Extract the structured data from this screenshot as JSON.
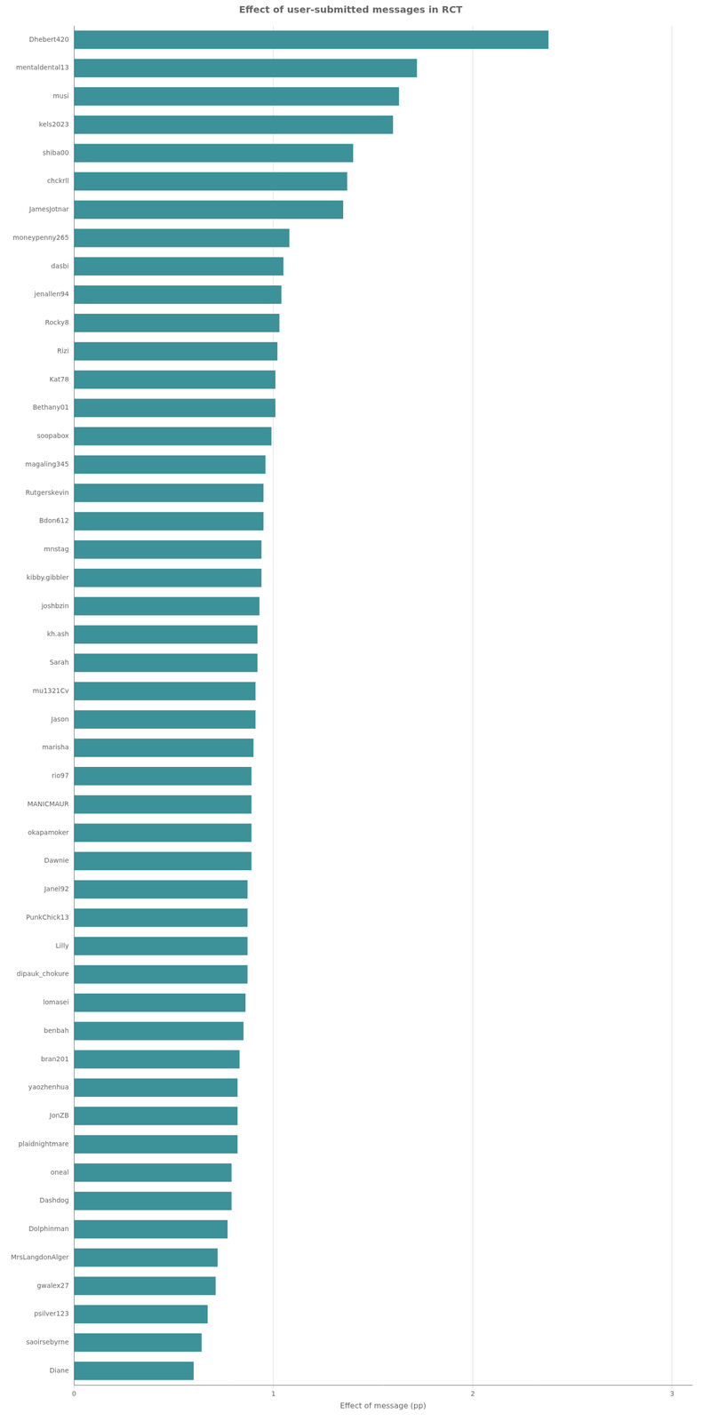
{
  "chart_data": {
    "type": "bar",
    "orientation": "horizontal",
    "title": "Effect of user-submitted messages in RCT",
    "xlabel": "Effect of message (pp)",
    "color": "#3d9199",
    "xlim": [
      0,
      3.1
    ],
    "xticks": [
      0,
      1,
      2,
      3
    ],
    "grid": true,
    "categories": [
      "Dhebert420",
      "mentaldental13",
      "musi",
      "kels2023",
      "shiba00",
      "chckrll",
      "JamesJotnar",
      "moneypenny265",
      "dasbi",
      "jenallen94",
      "Rocky8",
      "Rizi",
      "Kat78",
      "Bethany01",
      "soopabox",
      "magaling345",
      "Rutgerskevin",
      "Bdon612",
      "mnstag",
      "kibby.gibbler",
      "joshbzin",
      "kh.ash",
      "Sarah",
      "mu1321Cv",
      "Jason",
      "marisha",
      "rio97",
      "MANICMAUR",
      "okapamoker",
      "Dawnie",
      "Janel92",
      "PunkChick13",
      "Lilly",
      "dipauk_chokure",
      "lomasei",
      "benbah",
      "bran201",
      "yaozhenhua",
      "JonZB",
      "plaidnightmare",
      "oneal",
      "Dashdog",
      "Dolphinman",
      "MrsLangdonAlger",
      "gwalex27",
      "psilver123",
      "saoirsebyrne",
      "Diane"
    ],
    "values": [
      2.38,
      1.72,
      1.63,
      1.6,
      1.4,
      1.37,
      1.35,
      1.08,
      1.05,
      1.04,
      1.03,
      1.02,
      1.01,
      1.01,
      0.99,
      0.96,
      0.95,
      0.95,
      0.94,
      0.94,
      0.93,
      0.92,
      0.92,
      0.91,
      0.91,
      0.9,
      0.89,
      0.89,
      0.89,
      0.89,
      0.87,
      0.87,
      0.87,
      0.87,
      0.86,
      0.85,
      0.83,
      0.82,
      0.82,
      0.82,
      0.79,
      0.79,
      0.77,
      0.72,
      0.71,
      0.67,
      0.64,
      0.6
    ]
  }
}
